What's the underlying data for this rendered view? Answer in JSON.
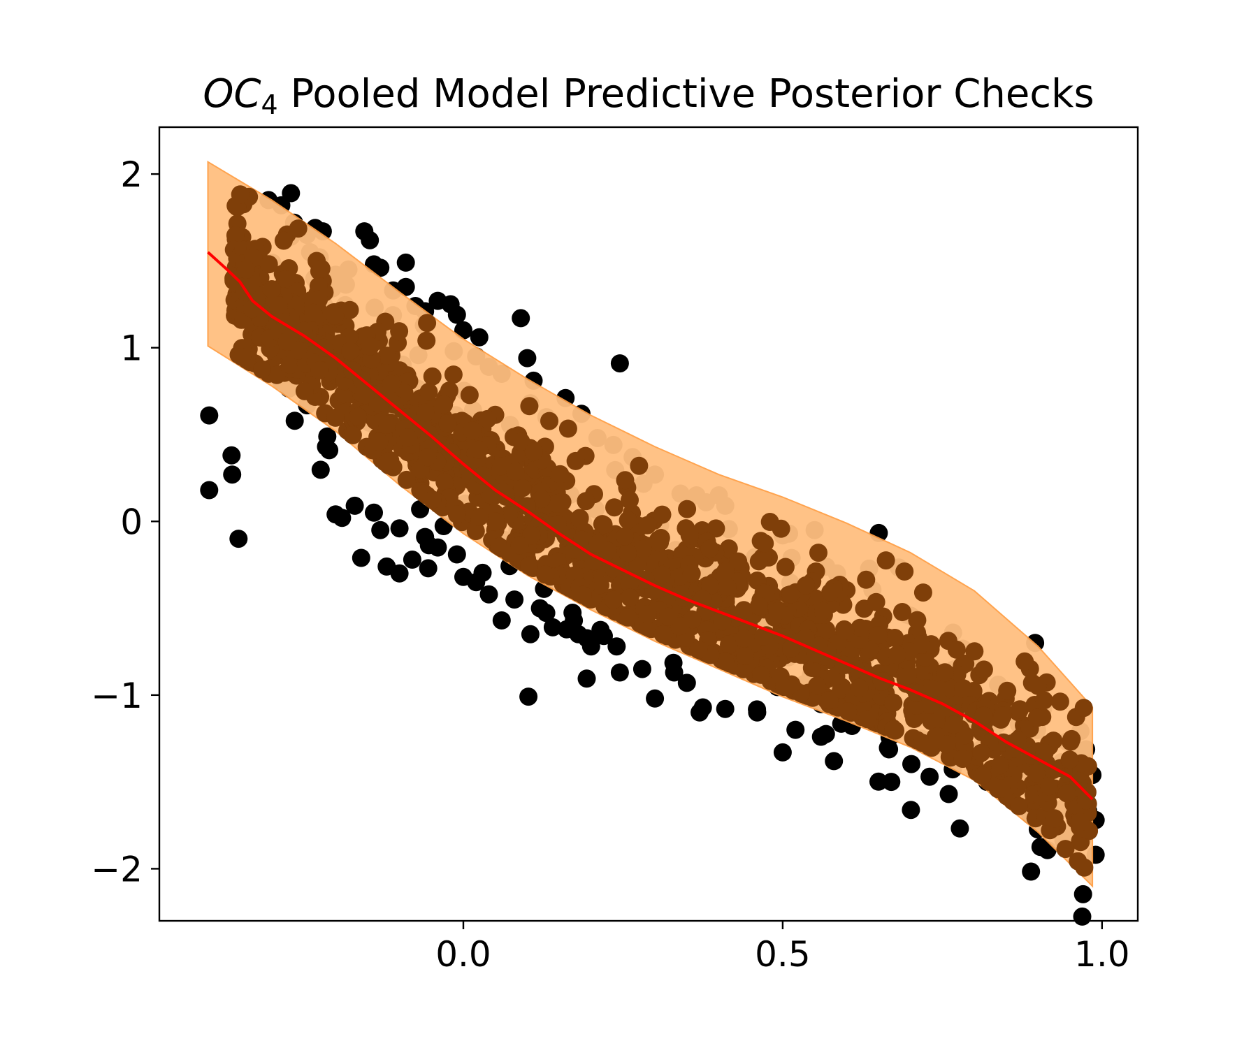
{
  "chart_data": {
    "type": "scatter",
    "title": {
      "symbol": "OC",
      "subscript": "4",
      "text": " Pooled Model Predictive Posterior Checks"
    },
    "xlabel": "",
    "ylabel": "",
    "xlim": [
      -0.476,
      1.056
    ],
    "ylim": [
      -2.3,
      2.27
    ],
    "x_ticks": [
      {
        "value": 0.0,
        "label": "0.0"
      },
      {
        "value": 0.5,
        "label": "0.5"
      },
      {
        "value": 1.0,
        "label": "1.0"
      }
    ],
    "y_ticks": [
      {
        "value": 2,
        "label": "2"
      },
      {
        "value": 1,
        "label": "1"
      },
      {
        "value": 0,
        "label": "0"
      },
      {
        "value": -1,
        "label": "−1"
      },
      {
        "value": -2,
        "label": "−2"
      }
    ],
    "grid": false,
    "colors": {
      "observed": "#000000",
      "predicted": "#7f3f09",
      "mean_line": "#ff0000",
      "band_fill": "#ffbf80",
      "band_edge": "#ff9f45"
    },
    "mean_line": {
      "x": [
        -0.4,
        -0.37,
        -0.35,
        -0.33,
        -0.3,
        -0.25,
        -0.2,
        -0.15,
        -0.1,
        -0.05,
        0.0,
        0.05,
        0.1,
        0.15,
        0.2,
        0.25,
        0.3,
        0.35,
        0.4,
        0.45,
        0.5,
        0.55,
        0.6,
        0.65,
        0.7,
        0.75,
        0.8,
        0.85,
        0.9,
        0.95,
        0.985
      ],
      "y": [
        1.55,
        1.45,
        1.38,
        1.27,
        1.18,
        1.07,
        0.94,
        0.79,
        0.64,
        0.49,
        0.33,
        0.18,
        0.06,
        -0.07,
        -0.19,
        -0.28,
        -0.37,
        -0.45,
        -0.52,
        -0.59,
        -0.66,
        -0.74,
        -0.82,
        -0.9,
        -0.97,
        -1.05,
        -1.15,
        -1.27,
        -1.37,
        -1.47,
        -1.6
      ]
    },
    "band": {
      "x": [
        -0.4,
        -0.3,
        -0.2,
        -0.1,
        0.0,
        0.1,
        0.2,
        0.3,
        0.4,
        0.5,
        0.6,
        0.7,
        0.8,
        0.9,
        0.985
      ],
      "upper": [
        2.07,
        1.85,
        1.6,
        1.32,
        1.05,
        0.82,
        0.61,
        0.43,
        0.27,
        0.14,
        -0.01,
        -0.18,
        -0.4,
        -0.72,
        -1.07
      ],
      "lower": [
        1.01,
        0.78,
        0.52,
        0.21,
        -0.07,
        -0.31,
        -0.51,
        -0.69,
        -0.85,
        -1.01,
        -1.15,
        -1.3,
        -1.49,
        -1.79,
        -2.1
      ]
    },
    "series": [
      {
        "kind": "observed",
        "points": [
          [
            -0.398,
            0.61
          ],
          [
            -0.398,
            0.18
          ],
          [
            -0.363,
            0.38
          ],
          [
            -0.362,
            0.27
          ],
          [
            -0.352,
            -0.1
          ],
          [
            -0.305,
            1.85
          ],
          [
            -0.285,
            1.82
          ],
          [
            -0.27,
            1.89
          ],
          [
            -0.265,
            1.72
          ],
          [
            -0.27,
            1.64
          ],
          [
            -0.245,
            1.65
          ],
          [
            -0.232,
            1.69
          ],
          [
            -0.22,
            1.67
          ],
          [
            -0.24,
            1.55
          ],
          [
            -0.225,
            1.52
          ],
          [
            -0.2,
            1.42
          ],
          [
            -0.18,
            1.45
          ],
          [
            -0.155,
            1.67
          ],
          [
            -0.14,
            1.48
          ],
          [
            -0.13,
            1.46
          ],
          [
            -0.11,
            1.33
          ],
          [
            -0.09,
            1.49
          ],
          [
            -0.09,
            1.35
          ],
          [
            -0.075,
            1.24
          ],
          [
            -0.06,
            1.21
          ],
          [
            -0.04,
            1.27
          ],
          [
            -0.02,
            1.25
          ],
          [
            -0.01,
            1.19
          ],
          [
            0.0,
            1.1
          ],
          [
            0.025,
            1.06
          ],
          [
            -0.015,
            0.98
          ],
          [
            0.02,
            0.95
          ],
          [
            0.04,
            0.89
          ],
          [
            0.06,
            0.85
          ],
          [
            0.09,
            1.17
          ],
          [
            0.1,
            0.94
          ],
          [
            0.11,
            0.81
          ],
          [
            0.105,
            0.68
          ],
          [
            0.13,
            0.6
          ],
          [
            0.16,
            0.71
          ],
          [
            0.185,
            0.62
          ],
          [
            0.21,
            0.48
          ],
          [
            0.245,
            0.91
          ],
          [
            0.235,
            0.44
          ],
          [
            0.265,
            0.37
          ],
          [
            0.3,
            0.27
          ],
          [
            0.34,
            0.16
          ],
          [
            0.365,
            0.15
          ],
          [
            0.38,
            0.11
          ],
          [
            0.4,
            0.15
          ],
          [
            0.41,
            0.09
          ],
          [
            0.5,
            -0.08
          ],
          [
            0.51,
            -0.07
          ],
          [
            0.55,
            -0.05
          ],
          [
            0.585,
            -0.3
          ],
          [
            -0.215,
            0.43
          ],
          [
            -0.21,
            0.41
          ],
          [
            -0.2,
            0.04
          ],
          [
            -0.19,
            0.02
          ],
          [
            -0.17,
            0.09
          ],
          [
            -0.16,
            -0.21
          ],
          [
            -0.14,
            0.05
          ],
          [
            -0.13,
            -0.05
          ],
          [
            -0.12,
            -0.26
          ],
          [
            -0.1,
            -0.04
          ],
          [
            -0.1,
            -0.3
          ],
          [
            -0.08,
            -0.22
          ],
          [
            -0.06,
            -0.09
          ],
          [
            -0.055,
            -0.27
          ],
          [
            -0.04,
            -0.15
          ],
          [
            -0.01,
            -0.19
          ],
          [
            0.0,
            -0.32
          ],
          [
            0.02,
            -0.35
          ],
          [
            0.04,
            -0.42
          ],
          [
            0.06,
            -0.57
          ],
          [
            0.08,
            -0.45
          ],
          [
            0.105,
            -0.65
          ],
          [
            0.12,
            -0.5
          ],
          [
            0.14,
            -0.61
          ],
          [
            0.18,
            -0.65
          ],
          [
            0.2,
            -0.72
          ],
          [
            0.22,
            -0.66
          ],
          [
            0.24,
            -0.72
          ],
          [
            0.245,
            -0.87
          ],
          [
            0.28,
            -0.85
          ],
          [
            0.3,
            -1.02
          ],
          [
            0.33,
            -0.87
          ],
          [
            0.35,
            -0.93
          ],
          [
            0.37,
            -1.1
          ],
          [
            0.41,
            -1.08
          ],
          [
            0.46,
            -1.1
          ],
          [
            0.5,
            -1.33
          ],
          [
            0.52,
            -1.2
          ],
          [
            0.56,
            -1.24
          ],
          [
            0.67,
            -1.5
          ],
          [
            0.73,
            -1.47
          ],
          [
            0.76,
            -1.57
          ],
          [
            0.82,
            -1.5
          ],
          [
            0.94,
            -1.65
          ],
          [
            0.985,
            -1.46
          ],
          [
            0.99,
            -1.72
          ],
          [
            0.99,
            -1.92
          ]
        ]
      }
    ]
  }
}
